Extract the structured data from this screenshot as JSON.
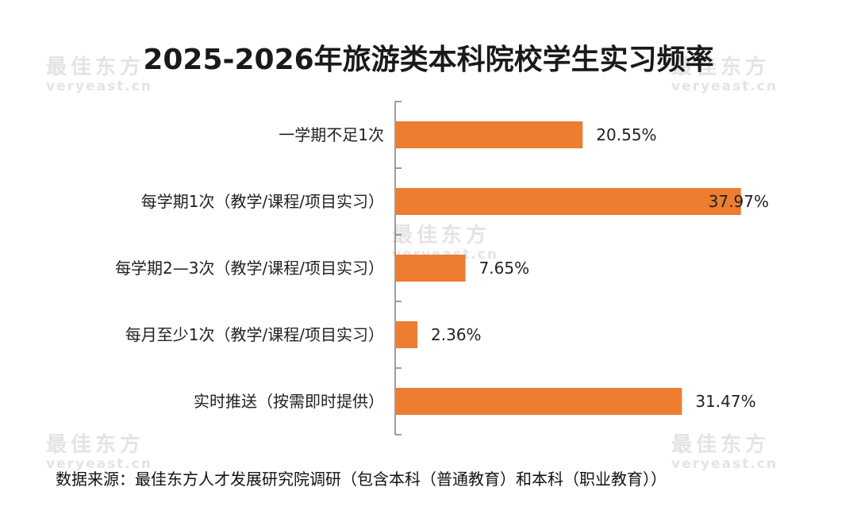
{
  "title": "2025-2026年旅游类本科院校学生实习频率",
  "watermark": {
    "cn": "最佳东方",
    "en": "veryeast.cn"
  },
  "source": "数据来源：最佳东方人才发展研究院调研（包含本科（普通教育）和本科（职业教育））",
  "colors": {
    "bar": "#ed7d31",
    "axis": "#7f7f7f",
    "text": "#222222",
    "watermark": "#e4e4e4"
  },
  "chart_data": {
    "type": "bar",
    "orientation": "horizontal",
    "categories": [
      "一学期不足1次",
      "每学期1次（教学/课程/项目实习）",
      "每学期2—3次（教学/课程/项目实习）",
      "每月至少1次（教学/课程/项目实习）",
      "实时推送（按需即时提供）"
    ],
    "values": [
      20.55,
      37.97,
      7.65,
      2.36,
      31.47
    ],
    "labels": [
      "20.55%",
      "37.97%",
      "7.65%",
      "2.36%",
      "31.47%"
    ],
    "unit": "%",
    "xlim": [
      0,
      40
    ],
    "grid": false,
    "legend": "none"
  }
}
